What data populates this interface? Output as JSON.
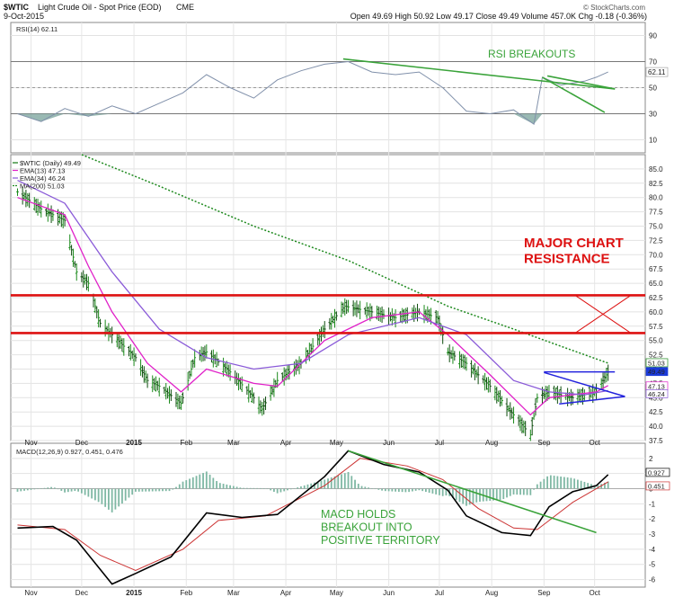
{
  "header": {
    "symbol": "$WTIC",
    "name": "Light Crude Oil - Spot Price (EOD)",
    "exchange": "CME",
    "date": "9-Oct-2015",
    "ohlc_line": "Open 49.69  High 50.92  Low 49.17  Close 49.49  Volume 457.0K  Chg -0.18 (-0.36%)",
    "watermark": "© StockCharts.com"
  },
  "colors": {
    "price_bar": "#117711",
    "ema13": "#e020c8",
    "ema34": "#8a5ad8",
    "ma200": "#1f8a1f",
    "rsi_line": "#8090aa",
    "rsi_fill": "#7fa8a0",
    "resistance": "#dd1111",
    "annotation_green": "#3aa33a",
    "triangle": "#2222dd",
    "macd_line": "#000000",
    "signal_line": "#cc3333",
    "histogram": "#7fb8a4"
  },
  "chart_data": [
    {
      "type": "line",
      "panel": "RSI",
      "legend": "RSI(14) 62.11",
      "ylim": [
        0,
        100
      ],
      "yticks": [
        10,
        30,
        50,
        70,
        90
      ],
      "reference_lines": [
        30,
        50,
        70
      ],
      "last_value_label": "62.11",
      "annotation": "RSI BREAKOUTS",
      "series": [
        {
          "name": "RSI(14)",
          "points": [
            [
              "2014-10-24",
              30
            ],
            [
              "2014-11-07",
              24
            ],
            [
              "2014-11-21",
              34
            ],
            [
              "2014-12-05",
              28
            ],
            [
              "2014-12-19",
              36
            ],
            [
              "2015-01-02",
              30
            ],
            [
              "2015-01-16",
              38
            ],
            [
              "2015-01-30",
              46
            ],
            [
              "2015-02-13",
              60
            ],
            [
              "2015-02-27",
              50
            ],
            [
              "2015-03-13",
              42
            ],
            [
              "2015-03-27",
              56
            ],
            [
              "2015-04-10",
              63
            ],
            [
              "2015-04-24",
              68
            ],
            [
              "2015-05-08",
              70
            ],
            [
              "2015-05-22",
              62
            ],
            [
              "2015-06-05",
              60
            ],
            [
              "2015-06-19",
              62
            ],
            [
              "2015-07-03",
              50
            ],
            [
              "2015-07-17",
              32
            ],
            [
              "2015-07-31",
              30
            ],
            [
              "2015-08-14",
              33
            ],
            [
              "2015-08-26",
              22
            ],
            [
              "2015-08-31",
              58
            ],
            [
              "2015-09-11",
              52
            ],
            [
              "2015-09-25",
              55
            ],
            [
              "2015-10-02",
              58
            ],
            [
              "2015-10-09",
              62
            ]
          ]
        }
      ],
      "trendlines": [
        {
          "from": [
            "2015-05-05",
            72
          ],
          "to": [
            "2015-10-13",
            49
          ]
        },
        {
          "from": [
            "2015-08-31",
            58
          ],
          "to": [
            "2015-10-07",
            31
          ]
        },
        {
          "from": [
            "2015-09-03",
            59
          ],
          "to": [
            "2015-10-13",
            49
          ]
        }
      ]
    },
    {
      "type": "line",
      "panel": "Price",
      "legend": [
        "$WTIC (Daily) 49.49",
        "EMA(13) 47.13",
        "EMA(34) 46.24",
        "MA(200) 51.03"
      ],
      "ylim": [
        37.5,
        87.5
      ],
      "yticks": [
        37.5,
        40.0,
        42.5,
        45.0,
        47.5,
        50.0,
        52.5,
        55.0,
        57.5,
        60.0,
        62.5,
        65.0,
        67.5,
        70.0,
        72.5,
        75.0,
        77.5,
        80.0,
        82.5,
        85.0
      ],
      "last_value_labels": [
        "51.03",
        "49.49",
        "47.13",
        "46.24"
      ],
      "resistance_levels": [
        62.9,
        56.3
      ],
      "annotation": "MAJOR CHART\nRESISTANCE",
      "series": [
        {
          "name": "$WTIC (Daily)",
          "points": [
            [
              "2014-10-24",
              81
            ],
            [
              "2014-11-07",
              78
            ],
            [
              "2014-11-21",
              76
            ],
            [
              "2014-11-28",
              67
            ],
            [
              "2014-12-05",
              65
            ],
            [
              "2014-12-12",
              58
            ],
            [
              "2014-12-19",
              56
            ],
            [
              "2015-01-02",
              52
            ],
            [
              "2015-01-09",
              48
            ],
            [
              "2015-01-16",
              47
            ],
            [
              "2015-01-29",
              44
            ],
            [
              "2015-02-06",
              52
            ],
            [
              "2015-02-13",
              53
            ],
            [
              "2015-02-27",
              49.5
            ],
            [
              "2015-03-13",
              45
            ],
            [
              "2015-03-18",
              43
            ],
            [
              "2015-03-27",
              48
            ],
            [
              "2015-04-10",
              51
            ],
            [
              "2015-04-24",
              57
            ],
            [
              "2015-05-06",
              61
            ],
            [
              "2015-05-22",
              60
            ],
            [
              "2015-06-05",
              59
            ],
            [
              "2015-06-19",
              60
            ],
            [
              "2015-06-30",
              59
            ],
            [
              "2015-07-06",
              53
            ],
            [
              "2015-07-17",
              51
            ],
            [
              "2015-07-31",
              47
            ],
            [
              "2015-08-14",
              42
            ],
            [
              "2015-08-24",
              38.5
            ],
            [
              "2015-08-28",
              45
            ],
            [
              "2015-09-04",
              46
            ],
            [
              "2015-09-18",
              45
            ],
            [
              "2015-10-02",
              46
            ],
            [
              "2015-10-09",
              49.49
            ]
          ]
        },
        {
          "name": "EMA(13)",
          "points": [
            [
              "2014-10-24",
              80
            ],
            [
              "2014-11-21",
              77
            ],
            [
              "2014-12-05",
              68
            ],
            [
              "2014-12-19",
              60
            ],
            [
              "2015-01-09",
              51
            ],
            [
              "2015-01-29",
              46
            ],
            [
              "2015-02-13",
              50
            ],
            [
              "2015-03-13",
              47.5
            ],
            [
              "2015-03-27",
              47
            ],
            [
              "2015-04-24",
              55
            ],
            [
              "2015-05-22",
              59
            ],
            [
              "2015-06-19",
              60
            ],
            [
              "2015-07-06",
              56
            ],
            [
              "2015-07-31",
              49
            ],
            [
              "2015-08-24",
              42
            ],
            [
              "2015-09-04",
              45
            ],
            [
              "2015-10-02",
              46
            ],
            [
              "2015-10-09",
              47.13
            ]
          ]
        },
        {
          "name": "EMA(34)",
          "points": [
            [
              "2014-10-24",
              83
            ],
            [
              "2014-11-21",
              79
            ],
            [
              "2014-12-19",
              67
            ],
            [
              "2015-01-16",
              57
            ],
            [
              "2015-02-13",
              52
            ],
            [
              "2015-03-13",
              50
            ],
            [
              "2015-04-10",
              51
            ],
            [
              "2015-05-08",
              56
            ],
            [
              "2015-06-19",
              59
            ],
            [
              "2015-07-17",
              56
            ],
            [
              "2015-08-14",
              48
            ],
            [
              "2015-09-04",
              46
            ],
            [
              "2015-09-25",
              45.5
            ],
            [
              "2015-10-09",
              46.24
            ]
          ]
        },
        {
          "name": "MA(200)",
          "points": [
            [
              "2014-12-01",
              87.5
            ],
            [
              "2015-01-16",
              82
            ],
            [
              "2015-03-13",
              75
            ],
            [
              "2015-05-08",
              69
            ],
            [
              "2015-07-06",
              61
            ],
            [
              "2015-08-14",
              57
            ],
            [
              "2015-09-11",
              54
            ],
            [
              "2015-10-09",
              51.03
            ]
          ]
        }
      ],
      "pattern": {
        "name": "triangle",
        "breakout_level": 49.5,
        "lines": [
          {
            "from": [
              "2015-09-01",
              49.5
            ],
            "to": [
              "2015-10-13",
              49.5
            ]
          },
          {
            "from": [
              "2015-09-01",
              49.4
            ],
            "to": [
              "2015-10-19",
              45.2
            ]
          },
          {
            "from": [
              "2015-09-10",
              43.9
            ],
            "to": [
              "2015-10-19",
              45.2
            ]
          }
        ]
      }
    },
    {
      "type": "line",
      "panel": "MACD",
      "legend": "MACD(12,26,9) 0.927, 0.451, 0.476",
      "ylim": [
        -6.5,
        3
      ],
      "yticks": [
        -6,
        -5,
        -4,
        -3,
        -2,
        -1,
        0,
        1,
        2
      ],
      "last_value_labels": [
        "0.927",
        "0.451"
      ],
      "annotation": "MACD HOLDS\nBREAKOUT INTO\nPOSITIVE TERRITORY",
      "series": [
        {
          "name": "MACD",
          "points": [
            [
              "2014-10-24",
              -2.6
            ],
            [
              "2014-11-14",
              -2.5
            ],
            [
              "2014-11-28",
              -3.4
            ],
            [
              "2014-12-19",
              -6.3
            ],
            [
              "2015-01-02",
              -5.6
            ],
            [
              "2015-01-23",
              -4.5
            ],
            [
              "2015-02-13",
              -1.6
            ],
            [
              "2015-03-06",
              -1.9
            ],
            [
              "2015-03-27",
              -1.7
            ],
            [
              "2015-04-24",
              0.8
            ],
            [
              "2015-05-08",
              2.5
            ],
            [
              "2015-05-29",
              1.6
            ],
            [
              "2015-06-19",
              1.1
            ],
            [
              "2015-07-06",
              -0.1
            ],
            [
              "2015-07-17",
              -1.8
            ],
            [
              "2015-08-07",
              -2.9
            ],
            [
              "2015-08-24",
              -3.1
            ],
            [
              "2015-09-04",
              -1.2
            ],
            [
              "2015-09-18",
              -0.2
            ],
            [
              "2015-10-02",
              0.2
            ],
            [
              "2015-10-09",
              0.927
            ]
          ]
        },
        {
          "name": "Signal",
          "points": [
            [
              "2014-10-24",
              -2.4
            ],
            [
              "2014-11-21",
              -2.7
            ],
            [
              "2014-12-12",
              -4.4
            ],
            [
              "2015-01-02",
              -5.4
            ],
            [
              "2015-01-30",
              -4.0
            ],
            [
              "2015-02-20",
              -2.1
            ],
            [
              "2015-03-20",
              -1.8
            ],
            [
              "2015-04-24",
              0.2
            ],
            [
              "2015-05-15",
              2.0
            ],
            [
              "2015-06-12",
              1.5
            ],
            [
              "2015-07-03",
              0.6
            ],
            [
              "2015-07-24",
              -1.3
            ],
            [
              "2015-08-14",
              -2.6
            ],
            [
              "2015-08-28",
              -2.7
            ],
            [
              "2015-09-18",
              -0.9
            ],
            [
              "2015-10-09",
              0.451
            ]
          ]
        }
      ],
      "trendlines": [
        {
          "from": [
            "2015-05-08",
            2.5
          ],
          "to": [
            "2015-10-02",
            -2.9
          ]
        }
      ]
    }
  ],
  "x_axis": {
    "tick_labels": [
      "Nov",
      "Dec",
      "2015",
      "Feb",
      "Mar",
      "Apr",
      "May",
      "Jun",
      "Jul",
      "Aug",
      "Sep",
      "Oct"
    ],
    "tick_dates": [
      "2014-11-01",
      "2014-12-01",
      "2015-01-01",
      "2015-02-01",
      "2015-03-01",
      "2015-04-01",
      "2015-05-01",
      "2015-06-01",
      "2015-07-01",
      "2015-08-01",
      "2015-09-01",
      "2015-10-01"
    ]
  }
}
